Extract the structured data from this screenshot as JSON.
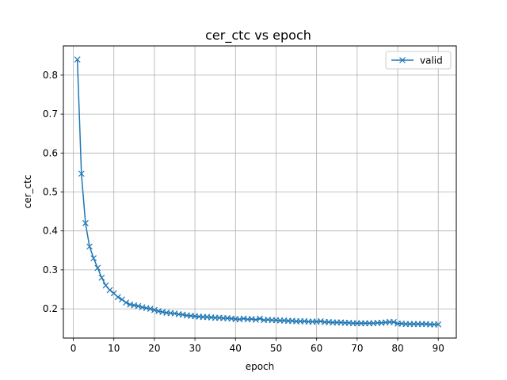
{
  "chart_data": {
    "type": "line",
    "title": "cer_ctc vs epoch",
    "xlabel": "epoch",
    "ylabel": "cer_ctc",
    "xlim": [
      -2.45,
      94.45
    ],
    "ylim": [
      0.125,
      0.875
    ],
    "xticks": [
      0,
      10,
      20,
      30,
      40,
      50,
      60,
      70,
      80,
      90
    ],
    "yticks": [
      0.2,
      0.3,
      0.4,
      0.5,
      0.6,
      0.7,
      0.8
    ],
    "grid": true,
    "legend_position": "top-right",
    "series": [
      {
        "name": "valid",
        "color": "#1f77b4",
        "marker": "x",
        "x": [
          1,
          2,
          3,
          4,
          5,
          6,
          7,
          8,
          9,
          10,
          11,
          12,
          13,
          14,
          15,
          16,
          17,
          18,
          19,
          20,
          21,
          22,
          23,
          24,
          25,
          26,
          27,
          28,
          29,
          30,
          31,
          32,
          33,
          34,
          35,
          36,
          37,
          38,
          39,
          40,
          41,
          42,
          43,
          44,
          45,
          46,
          47,
          48,
          49,
          50,
          51,
          52,
          53,
          54,
          55,
          56,
          57,
          58,
          59,
          60,
          61,
          62,
          63,
          64,
          65,
          66,
          67,
          68,
          69,
          70,
          71,
          72,
          73,
          74,
          75,
          76,
          77,
          78,
          79,
          80,
          81,
          82,
          83,
          84,
          85,
          86,
          87,
          88,
          89,
          90
        ],
        "y": [
          0.84,
          0.547,
          0.42,
          0.36,
          0.33,
          0.305,
          0.28,
          0.26,
          0.248,
          0.24,
          0.23,
          0.224,
          0.216,
          0.211,
          0.209,
          0.207,
          0.204,
          0.202,
          0.2,
          0.197,
          0.194,
          0.192,
          0.19,
          0.189,
          0.188,
          0.186,
          0.185,
          0.183,
          0.182,
          0.181,
          0.18,
          0.179,
          0.179,
          0.178,
          0.177,
          0.177,
          0.176,
          0.176,
          0.175,
          0.174,
          0.173,
          0.175,
          0.173,
          0.174,
          0.172,
          0.175,
          0.171,
          0.172,
          0.171,
          0.171,
          0.17,
          0.17,
          0.169,
          0.169,
          0.168,
          0.168,
          0.168,
          0.167,
          0.167,
          0.167,
          0.168,
          0.166,
          0.166,
          0.165,
          0.165,
          0.165,
          0.164,
          0.164,
          0.163,
          0.163,
          0.163,
          0.163,
          0.163,
          0.163,
          0.164,
          0.164,
          0.165,
          0.166,
          0.166,
          0.162,
          0.162,
          0.161,
          0.161,
          0.161,
          0.161,
          0.161,
          0.161,
          0.16,
          0.16,
          0.16
        ]
      }
    ]
  }
}
